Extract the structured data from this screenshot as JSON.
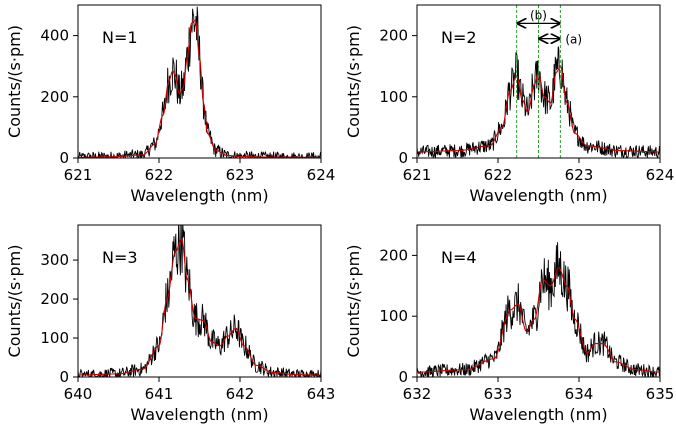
{
  "figure": {
    "panels": [
      {
        "id": "n1",
        "label": "N=1",
        "xlabel": "Wavelength (nm)",
        "ylabel": "Counts/(s·pm)",
        "xlim": [
          621,
          624
        ],
        "ylim": [
          0,
          500
        ],
        "xticks": [
          "621",
          "622",
          "623",
          "624"
        ],
        "yticks": [
          "0",
          "200",
          "400"
        ],
        "show_ylabel": true
      },
      {
        "id": "n2",
        "label": "N=2",
        "xlabel": "Wavelength (nm)",
        "ylabel": "Counts/(s·pm)",
        "xlim": [
          621,
          624
        ],
        "ylim": [
          0,
          250
        ],
        "xticks": [
          "621",
          "622",
          "623",
          "624"
        ],
        "yticks": [
          "0",
          "100",
          "200"
        ],
        "show_ylabel": true,
        "annotations": {
          "dashed_lines_x": [
            622.23,
            622.5,
            622.77
          ],
          "arrow_b": {
            "from": 622.23,
            "to": 622.77,
            "y": 220,
            "label": "(b)"
          },
          "arrow_a": {
            "from": 622.5,
            "to": 622.77,
            "y": 195,
            "label": "(a)"
          }
        }
      },
      {
        "id": "n3",
        "label": "N=3",
        "xlabel": "Wavelength (nm)",
        "ylabel": "Counts/(s·pm)",
        "xlim": [
          640,
          643
        ],
        "ylim": [
          0,
          390
        ],
        "xticks": [
          "640",
          "641",
          "642",
          "643"
        ],
        "yticks": [
          "0",
          "100",
          "200",
          "300"
        ],
        "show_ylabel": true
      },
      {
        "id": "n4",
        "label": "N=4",
        "xlabel": "Wavelength (nm)",
        "ylabel": "Counts/(s·pm)",
        "xlim": [
          632,
          635
        ],
        "ylim": [
          0,
          250
        ],
        "xticks": [
          "632",
          "633",
          "634",
          "635"
        ],
        "yticks": [
          "0",
          "100",
          "200"
        ],
        "show_ylabel": true
      }
    ],
    "colors": {
      "data": "#000000",
      "fit": "#cc0000",
      "dashed": "#2ca02c"
    }
  },
  "chart_data": [
    {
      "type": "line",
      "title": "",
      "label": "N=1",
      "xlabel": "Wavelength (nm)",
      "ylabel": "Counts/(s·pm)",
      "xlim": [
        621,
        624
      ],
      "ylim": [
        0,
        500
      ],
      "series": [
        {
          "x": [
            621.0,
            621.4,
            621.8,
            621.95,
            622.05,
            622.12,
            622.17,
            622.2,
            622.25,
            622.3,
            622.35,
            622.4,
            622.45,
            622.5,
            622.55,
            622.6,
            622.7,
            622.85,
            623.0,
            623.3,
            624.0
          ],
          "y": [
            2,
            4,
            10,
            45,
            140,
            250,
            285,
            270,
            210,
            230,
            330,
            440,
            450,
            330,
            180,
            80,
            25,
            8,
            5,
            3,
            2
          ]
        }
      ]
    },
    {
      "type": "line",
      "title": "",
      "label": "N=2",
      "xlabel": "Wavelength (nm)",
      "ylabel": "Counts/(s·pm)",
      "xlim": [
        621,
        624
      ],
      "ylim": [
        0,
        250
      ],
      "series": [
        {
          "x": [
            621.0,
            621.5,
            621.9,
            622.05,
            622.15,
            622.23,
            622.3,
            622.37,
            622.45,
            622.5,
            622.57,
            622.65,
            622.72,
            622.77,
            622.85,
            622.95,
            623.1,
            623.5,
            624.0
          ],
          "y": [
            10,
            12,
            20,
            50,
            110,
            135,
            95,
            75,
            120,
            140,
            100,
            90,
            140,
            150,
            90,
            40,
            20,
            12,
            10
          ]
        }
      ]
    },
    {
      "type": "line",
      "title": "",
      "label": "N=3",
      "xlabel": "Wavelength (nm)",
      "ylabel": "Counts/(s·pm)",
      "xlim": [
        640,
        643
      ],
      "ylim": [
        0,
        390
      ],
      "series": [
        {
          "x": [
            640.0,
            640.5,
            640.8,
            641.0,
            641.1,
            641.2,
            641.28,
            641.35,
            641.45,
            641.55,
            641.65,
            641.75,
            641.85,
            641.95,
            642.05,
            642.2,
            642.4,
            642.7,
            643.0
          ],
          "y": [
            5,
            8,
            20,
            80,
            200,
            320,
            355,
            250,
            150,
            145,
            90,
            80,
            105,
            125,
            80,
            30,
            12,
            6,
            5
          ]
        }
      ]
    },
    {
      "type": "line",
      "title": "",
      "label": "N=4",
      "xlabel": "Wavelength (nm)",
      "ylabel": "Counts/(s·pm)",
      "xlim": [
        632,
        635
      ],
      "ylim": [
        0,
        250
      ],
      "series": [
        {
          "x": [
            632.0,
            632.6,
            632.95,
            633.15,
            633.25,
            633.35,
            633.45,
            633.55,
            633.65,
            633.75,
            633.85,
            633.95,
            634.1,
            634.2,
            634.3,
            634.45,
            634.7,
            635.0
          ],
          "y": [
            8,
            12,
            30,
            110,
            120,
            75,
            95,
            160,
            150,
            180,
            150,
            95,
            40,
            55,
            55,
            25,
            12,
            8
          ]
        }
      ]
    }
  ]
}
